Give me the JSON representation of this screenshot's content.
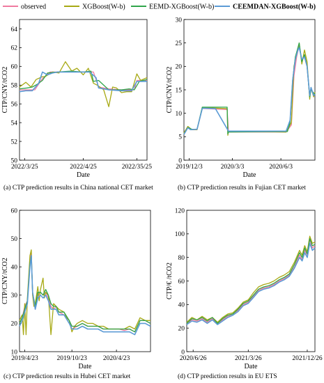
{
  "legend": [
    {
      "name": "observed",
      "color": "#f07aa0",
      "bold": false
    },
    {
      "name": "XGBoost(W-b)",
      "color": "#a7a914",
      "bold": false
    },
    {
      "name": "EEMD-XGBoost(W-b)",
      "color": "#2fa54a",
      "bold": false
    },
    {
      "name": "CEEMDAN-XGBoost(W-b)",
      "color": "#5b9bd5",
      "bold": true
    }
  ],
  "chart_data": [
    {
      "type": "line",
      "caption": "(a) CTP prediction results in China national CET market",
      "xlabel": "Date",
      "ylabel": "CTP/CNY/tCO2",
      "ylim": [
        50,
        65
      ],
      "yticks": [
        50,
        52,
        54,
        56,
        58,
        60,
        62,
        64
      ],
      "xticks": [
        {
          "label": "2022/3/25",
          "pos": 0.04
        },
        {
          "label": "2022/4/25",
          "pos": 0.5
        },
        {
          "label": "2022/35/25",
          "pos": 0.92
        }
      ],
      "series": [
        {
          "name": "observed",
          "x": [
            0,
            0.06,
            0.12,
            0.18,
            0.24,
            0.26,
            0.3,
            0.4,
            0.5,
            0.58,
            0.62,
            0.7,
            0.8,
            0.9,
            0.92,
            1.0
          ],
          "y": [
            57.5,
            57.5,
            57.5,
            58.7,
            59.4,
            59.4,
            59.4,
            59.4,
            59.4,
            59.4,
            57.8,
            57.6,
            57.5,
            57.5,
            58.5,
            58.5
          ]
        },
        {
          "name": "XGBoost(W-b)",
          "x": [
            0,
            0.05,
            0.09,
            0.13,
            0.18,
            0.2,
            0.26,
            0.31,
            0.36,
            0.41,
            0.45,
            0.5,
            0.54,
            0.58,
            0.61,
            0.66,
            0.7,
            0.73,
            0.76,
            0.8,
            0.84,
            0.88,
            0.92,
            0.95,
            1.0
          ],
          "y": [
            57.8,
            58.3,
            57.8,
            58.6,
            58.9,
            58.9,
            59.4,
            59.3,
            60.5,
            59.5,
            59.8,
            59.1,
            59.8,
            58.2,
            58.0,
            57.5,
            55.7,
            57.8,
            57.7,
            57.2,
            57.3,
            57.3,
            59.2,
            58.5,
            58.8
          ]
        },
        {
          "name": "EEMD-XGBoost(W-b)",
          "x": [
            0,
            0.06,
            0.1,
            0.14,
            0.18,
            0.22,
            0.3,
            0.4,
            0.5,
            0.56,
            0.58,
            0.62,
            0.7,
            0.8,
            0.86,
            0.9,
            0.94,
            1.0
          ],
          "y": [
            57.6,
            57.7,
            57.8,
            58.1,
            58.5,
            59.3,
            59.4,
            59.5,
            59.4,
            59.5,
            58.4,
            58.5,
            57.5,
            57.5,
            57.6,
            57.5,
            58.4,
            58.6
          ]
        },
        {
          "name": "CEEMDAN-XGBoost(W-b)",
          "x": [
            0,
            0.05,
            0.1,
            0.15,
            0.18,
            0.22,
            0.26,
            0.3,
            0.4,
            0.5,
            0.55,
            0.6,
            0.62,
            0.7,
            0.8,
            0.88,
            0.92,
            1.0
          ],
          "y": [
            57.3,
            57.4,
            57.4,
            58.2,
            59.4,
            59.1,
            59.3,
            59.4,
            59.4,
            59.4,
            59.4,
            58.8,
            57.7,
            57.5,
            57.4,
            57.4,
            58.4,
            58.4
          ]
        }
      ]
    },
    {
      "type": "line",
      "caption": "(b) CTP prediction results in Fujian CET market",
      "xlabel": "Date",
      "ylabel": "CTP/CNY/tCO2",
      "ylim": [
        0,
        30
      ],
      "yticks": [
        0,
        5,
        10,
        15,
        20,
        25,
        30
      ],
      "xticks": [
        {
          "label": "2019/12/3",
          "pos": 0.04
        },
        {
          "label": "2020/3/3",
          "pos": 0.37
        },
        {
          "label": "2020/6/3",
          "pos": 0.74
        }
      ],
      "series": [
        {
          "name": "observed",
          "x": [
            0,
            0.03,
            0.05,
            0.1,
            0.14,
            0.15,
            0.33,
            0.34,
            0.78,
            0.82,
            0.84,
            0.86,
            0.88,
            0.9,
            0.92,
            0.94,
            0.96,
            0.97,
            1.0
          ],
          "y": [
            5.5,
            7,
            6.5,
            6.5,
            11,
            11,
            10.8,
            6,
            6,
            7.5,
            18,
            22,
            24.5,
            21,
            22.5,
            20,
            13.5,
            15,
            14
          ]
        },
        {
          "name": "XGBoost(W-b)",
          "x": [
            0,
            0.03,
            0.06,
            0.1,
            0.14,
            0.15,
            0.33,
            0.335,
            0.34,
            0.78,
            0.8,
            0.82,
            0.84,
            0.86,
            0.88,
            0.9,
            0.92,
            0.94,
            0.96,
            0.97,
            0.99,
            1.0
          ],
          "y": [
            5.8,
            7.2,
            6.5,
            6.5,
            11.2,
            11.2,
            11.0,
            5.3,
            6.2,
            6.0,
            7.0,
            8.0,
            20,
            22.5,
            25,
            20.5,
            23.5,
            21,
            13,
            15.5,
            13.5,
            14.5
          ]
        },
        {
          "name": "EEMD-XGBoost(W-b)",
          "x": [
            0,
            0.03,
            0.06,
            0.1,
            0.14,
            0.15,
            0.33,
            0.335,
            0.34,
            0.79,
            0.81,
            0.83,
            0.85,
            0.87,
            0.88,
            0.9,
            0.92,
            0.94,
            0.96,
            0.97,
            1.0
          ],
          "y": [
            5.6,
            7.0,
            6.6,
            6.6,
            11.3,
            11.3,
            11.3,
            5.6,
            6.0,
            6.1,
            8.0,
            17,
            22,
            24,
            25,
            21,
            22.5,
            20,
            13.5,
            15,
            14
          ]
        },
        {
          "name": "CEEMDAN-XGBoost(W-b)",
          "x": [
            0,
            0.03,
            0.05,
            0.1,
            0.14,
            0.15,
            0.24,
            0.34,
            0.78,
            0.81,
            0.83,
            0.85,
            0.87,
            0.88,
            0.9,
            0.92,
            0.94,
            0.96,
            0.97,
            0.99,
            1.0
          ],
          "y": [
            5.5,
            6.9,
            6.5,
            6.6,
            11.0,
            11.1,
            11.0,
            6.2,
            6.2,
            8.5,
            17,
            21.5,
            23.5,
            24,
            21.5,
            22,
            20,
            13.8,
            15.5,
            13.8,
            14
          ]
        }
      ]
    },
    {
      "type": "line",
      "caption": "(c) CTP prediction results in Hubei CET market",
      "xlabel": "Date",
      "ylabel": "CTP/CNY/tCO2",
      "ylim": [
        10,
        60
      ],
      "yticks": [
        10,
        20,
        30,
        40,
        50,
        60
      ],
      "xticks": [
        {
          "label": "2019/4/23",
          "pos": 0.04
        },
        {
          "label": "2019/10/23",
          "pos": 0.4
        },
        {
          "label": "2020/4/23",
          "pos": 0.74
        }
      ],
      "series": [
        {
          "name": "observed",
          "x": [
            0,
            0.02,
            0.04,
            0.06,
            0.08,
            0.09,
            0.1,
            0.12,
            0.14,
            0.16,
            0.18,
            0.2,
            0.22,
            0.24,
            0.26,
            0.28,
            0.3,
            0.34,
            0.38,
            0.4,
            0.44,
            0.48,
            0.52,
            0.56,
            0.6,
            0.64,
            0.68,
            0.72,
            0.76,
            0.8,
            0.84,
            0.88,
            0.92,
            0.96,
            1.0
          ],
          "y": [
            20,
            22,
            26,
            28,
            42,
            45,
            30,
            25,
            30,
            31,
            30,
            31,
            29,
            26,
            25,
            26,
            24,
            23,
            21,
            18,
            19,
            20,
            19,
            19,
            19,
            18,
            18,
            18,
            18,
            17.5,
            18,
            17,
            21,
            21,
            20
          ]
        },
        {
          "name": "XGBoost(W-b)",
          "x": [
            0,
            0.02,
            0.03,
            0.04,
            0.05,
            0.06,
            0.08,
            0.09,
            0.1,
            0.11,
            0.12,
            0.14,
            0.15,
            0.16,
            0.18,
            0.19,
            0.2,
            0.22,
            0.24,
            0.26,
            0.28,
            0.3,
            0.34,
            0.36,
            0.38,
            0.4,
            0.42,
            0.44,
            0.48,
            0.52,
            0.56,
            0.6,
            0.64,
            0.68,
            0.72,
            0.76,
            0.8,
            0.84,
            0.88,
            0.92,
            0.96,
            1.0
          ],
          "y": [
            21,
            23,
            16,
            27,
            16,
            29,
            44,
            46,
            30,
            26,
            27,
            33,
            28,
            32,
            36,
            29,
            31,
            30,
            16,
            27,
            26,
            25,
            24,
            22,
            21,
            17,
            19,
            20,
            21,
            20,
            20,
            19,
            19,
            18,
            18,
            18,
            18,
            19,
            18,
            22,
            21,
            21
          ]
        },
        {
          "name": "EEMD-XGBoost(W-b)",
          "x": [
            0,
            0.02,
            0.04,
            0.06,
            0.08,
            0.09,
            0.1,
            0.12,
            0.14,
            0.16,
            0.18,
            0.2,
            0.22,
            0.24,
            0.26,
            0.28,
            0.3,
            0.34,
            0.38,
            0.4,
            0.44,
            0.48,
            0.52,
            0.56,
            0.6,
            0.64,
            0.68,
            0.72,
            0.76,
            0.8,
            0.84,
            0.88,
            0.92,
            0.96,
            1.0
          ],
          "y": [
            20,
            22,
            25,
            28,
            41,
            44,
            31,
            26,
            31,
            31,
            30,
            32,
            30,
            27,
            26,
            26,
            24,
            24,
            21,
            19,
            19,
            20,
            19,
            19,
            19,
            18,
            18,
            18,
            18,
            18,
            18,
            17,
            21,
            21,
            20
          ]
        },
        {
          "name": "CEEMDAN-XGBoost(W-b)",
          "x": [
            0,
            0.02,
            0.04,
            0.06,
            0.08,
            0.09,
            0.1,
            0.12,
            0.14,
            0.16,
            0.18,
            0.2,
            0.22,
            0.24,
            0.26,
            0.28,
            0.3,
            0.34,
            0.38,
            0.4,
            0.44,
            0.48,
            0.52,
            0.56,
            0.6,
            0.64,
            0.68,
            0.72,
            0.76,
            0.8,
            0.84,
            0.88,
            0.92,
            0.96,
            1.0
          ],
          "y": [
            19,
            21,
            24,
            27,
            40,
            44,
            31,
            25,
            29,
            30,
            29,
            30,
            28,
            25,
            25,
            25,
            23,
            23,
            20,
            18,
            18,
            19,
            18,
            18,
            18,
            17,
            17,
            17,
            17,
            17,
            17,
            16,
            20,
            20,
            19
          ]
        }
      ]
    },
    {
      "type": "line",
      "caption": "(d) CTP prediction results in EU ETS",
      "xlabel": "Date",
      "ylabel": "CTP/€ /tCO2",
      "ylim": [
        0,
        120
      ],
      "yticks": [
        0,
        20,
        40,
        60,
        80,
        100,
        120
      ],
      "xticks": [
        {
          "label": "2020/6/26",
          "pos": 0.05
        },
        {
          "label": "2021/3/26",
          "pos": 0.48
        },
        {
          "label": "2021/12/26",
          "pos": 0.94
        }
      ],
      "series": [
        {
          "name": "observed",
          "x": [
            0,
            0.04,
            0.08,
            0.12,
            0.16,
            0.2,
            0.24,
            0.28,
            0.32,
            0.36,
            0.4,
            0.44,
            0.48,
            0.52,
            0.56,
            0.6,
            0.64,
            0.68,
            0.72,
            0.76,
            0.8,
            0.84,
            0.88,
            0.9,
            0.92,
            0.94,
            0.96,
            0.98,
            1.0
          ],
          "y": [
            24,
            27,
            26,
            28,
            25,
            28,
            24,
            27,
            30,
            32,
            35,
            40,
            42,
            47,
            52,
            54,
            55,
            57,
            60,
            62,
            65,
            72,
            82,
            78,
            86,
            82,
            95,
            88,
            90
          ]
        },
        {
          "name": "XGBoost(W-b)",
          "x": [
            0,
            0.04,
            0.08,
            0.12,
            0.16,
            0.2,
            0.24,
            0.28,
            0.32,
            0.36,
            0.4,
            0.44,
            0.48,
            0.52,
            0.56,
            0.6,
            0.64,
            0.68,
            0.72,
            0.76,
            0.8,
            0.84,
            0.88,
            0.9,
            0.92,
            0.94,
            0.96,
            0.98,
            1.0
          ],
          "y": [
            25,
            29,
            27,
            30,
            27,
            29,
            25,
            29,
            32,
            33,
            37,
            42,
            44,
            50,
            55,
            57,
            58,
            60,
            63,
            65,
            68,
            76,
            86,
            82,
            90,
            85,
            98,
            92,
            93
          ]
        },
        {
          "name": "EEMD-XGBoost(W-b)",
          "x": [
            0,
            0.04,
            0.08,
            0.12,
            0.16,
            0.2,
            0.24,
            0.28,
            0.32,
            0.36,
            0.4,
            0.44,
            0.48,
            0.52,
            0.56,
            0.6,
            0.64,
            0.68,
            0.72,
            0.76,
            0.8,
            0.84,
            0.88,
            0.9,
            0.92,
            0.94,
            0.96,
            0.98,
            1.0
          ],
          "y": [
            24,
            28,
            27,
            29,
            26,
            29,
            24,
            28,
            31,
            32,
            36,
            41,
            43,
            48,
            53,
            55,
            56,
            58,
            61,
            63,
            66,
            74,
            84,
            80,
            88,
            83,
            96,
            90,
            91
          ]
        },
        {
          "name": "CEEMDAN-XGBoost(W-b)",
          "x": [
            0,
            0.04,
            0.08,
            0.12,
            0.16,
            0.2,
            0.24,
            0.28,
            0.32,
            0.36,
            0.4,
            0.44,
            0.48,
            0.52,
            0.56,
            0.6,
            0.64,
            0.68,
            0.72,
            0.76,
            0.8,
            0.84,
            0.88,
            0.9,
            0.92,
            0.94,
            0.96,
            0.98,
            1.0
          ],
          "y": [
            23,
            26,
            25,
            27,
            24,
            27,
            23,
            26,
            29,
            31,
            34,
            39,
            41,
            46,
            51,
            53,
            54,
            56,
            59,
            61,
            64,
            71,
            80,
            77,
            84,
            80,
            92,
            86,
            88
          ]
        }
      ]
    }
  ]
}
